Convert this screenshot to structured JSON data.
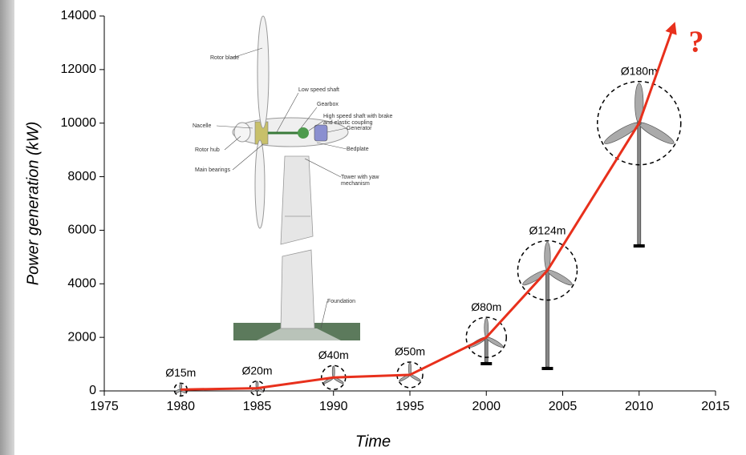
{
  "chart_data": {
    "type": "line",
    "x_label": "Time",
    "y_label": "Power generation (kW)",
    "x": [
      1980,
      1985,
      1990,
      1995,
      2000,
      2004,
      2010,
      2012.3
    ],
    "series": [
      {
        "color": "#e8301c",
        "values": [
          50,
          100,
          500,
          600,
          2000,
          4500,
          10000,
          13700
        ]
      }
    ],
    "diameter_labels": [
      "Ø15m",
      "Ø20m",
      "Ø40m",
      "Ø50m",
      "Ø80m",
      "Ø124m",
      "Ø180m"
    ],
    "annotation": "?",
    "xlim": [
      1975,
      2015
    ],
    "xticks": [
      1975,
      1980,
      1985,
      1990,
      1995,
      2000,
      2005,
      2010,
      2015
    ],
    "ylim": [
      0,
      14000
    ],
    "yticks": [
      0,
      2000,
      4000,
      6000,
      8000,
      10000,
      12000,
      14000
    ],
    "inset_labels": [
      "Rotor blade",
      "Low speed shaft",
      "Gearbox",
      "High speed shaft with brake",
      "and elastic coupling",
      "Generator",
      "Nacelle",
      "Bedplate",
      "Rotor hub",
      "Main bearings",
      "Tower with yaw",
      "mechanism",
      "Foundation"
    ]
  }
}
